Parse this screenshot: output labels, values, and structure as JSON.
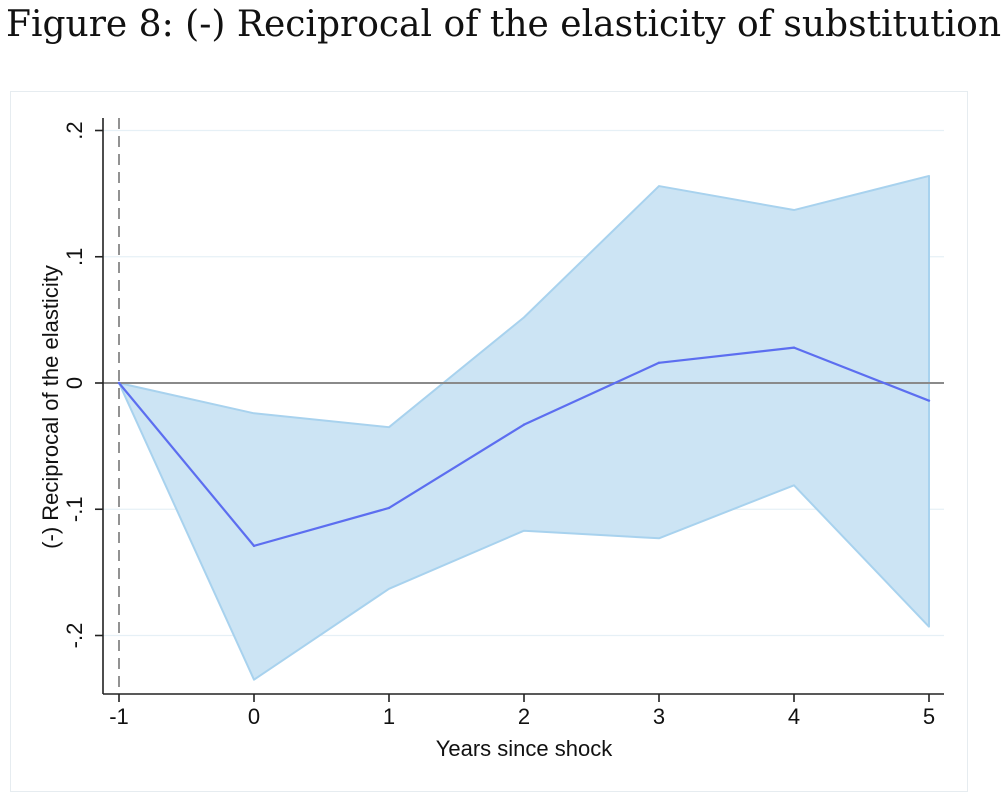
{
  "figure": {
    "title": "Figure 8: (-) Reciprocal of the elasticity of substitution"
  },
  "chart_data": {
    "type": "line",
    "title": "",
    "xlabel": "Years since shock",
    "ylabel": "(-) Reciprocal of the elasticity",
    "x": [
      -1,
      0,
      1,
      2,
      3,
      4,
      5
    ],
    "xticks": [
      -1,
      0,
      1,
      2,
      3,
      4,
      5
    ],
    "xtick_labels": [
      "-1",
      "0",
      "1",
      "2",
      "3",
      "4",
      "5"
    ],
    "yticks": [
      -0.2,
      -0.1,
      0,
      0.1,
      0.2
    ],
    "ytick_labels": [
      "-.2",
      "-.1",
      "0",
      ".1",
      ".2"
    ],
    "xlim": [
      -1.1,
      5.1
    ],
    "ylim": [
      -0.247,
      0.21
    ],
    "series": [
      {
        "type": "line",
        "values": [
          0,
          -0.129,
          -0.099,
          -0.033,
          0.016,
          0.028,
          -0.014
        ],
        "color": "#5c6ef0"
      }
    ],
    "confidence_band": {
      "lower": [
        0,
        -0.235,
        -0.163,
        -0.117,
        -0.123,
        -0.081,
        -0.193
      ],
      "upper": [
        0,
        -0.024,
        -0.035,
        0.052,
        0.156,
        0.137,
        0.164
      ],
      "fill": "#cce4f4",
      "stroke": "#a8d2ee"
    },
    "reference_lines": {
      "horizontal_at": 0,
      "horizontal_color": "#8a8a8a",
      "vertical_dashed_at": -1,
      "vertical_color": "#777777"
    },
    "grid": "horizontal",
    "grid_color": "#e6f0f6",
    "legend": "none"
  }
}
